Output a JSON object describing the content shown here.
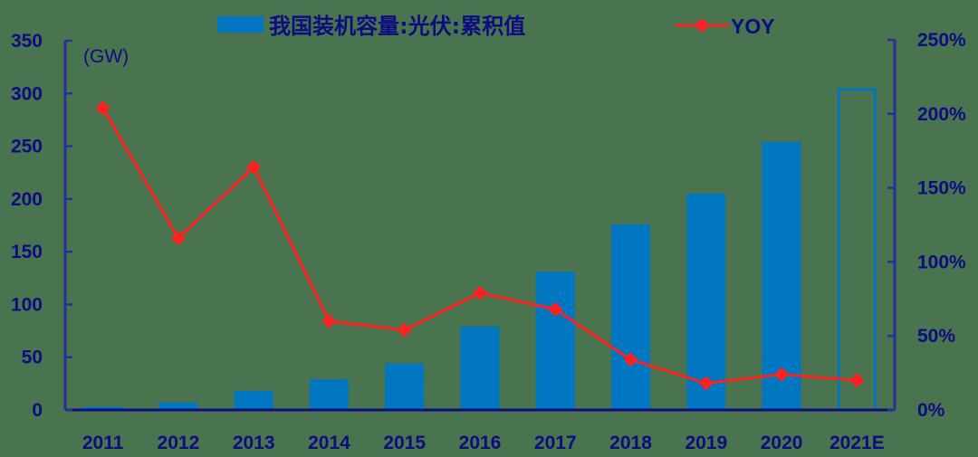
{
  "chart_data": {
    "type": "bar+line",
    "title": "",
    "categories": [
      "2011",
      "2012",
      "2013",
      "2014",
      "2015",
      "2016",
      "2017",
      "2018",
      "2019",
      "2020",
      "2021E"
    ],
    "series": [
      {
        "name": "我国装机容量:光伏:累积值",
        "type": "bar",
        "axis": "left",
        "values": [
          3,
          7,
          18,
          29,
          44,
          79,
          131,
          176,
          205,
          254,
          305
        ],
        "estimated_last": true,
        "color": "#0077c0"
      },
      {
        "name": "YOY",
        "type": "line",
        "axis": "right",
        "marker": "diamond",
        "values": [
          204,
          116,
          164,
          60,
          54,
          79,
          68,
          34,
          18,
          24,
          20
        ],
        "unit": "%",
        "color": "#ff2020"
      }
    ],
    "left_axis": {
      "label": "(GW)",
      "min": 0,
      "max": 350,
      "ticks": [
        "0",
        "50",
        "100",
        "150",
        "200",
        "250",
        "300",
        "350"
      ]
    },
    "right_axis": {
      "min": 0,
      "max": 250,
      "ticks": [
        "0%",
        "50%",
        "100%",
        "150%",
        "200%",
        "250%"
      ]
    },
    "xlabel": "",
    "grid": false,
    "legend_position": "top"
  },
  "legend": {
    "bar_label": "我国装机容量:光伏:累积值",
    "line_label": "YOY"
  },
  "colors": {
    "background": "#4a7350",
    "bar": "#0077c0",
    "line": "#ff2020",
    "axis": "#2e2e9a",
    "text": "#0d0d80"
  }
}
